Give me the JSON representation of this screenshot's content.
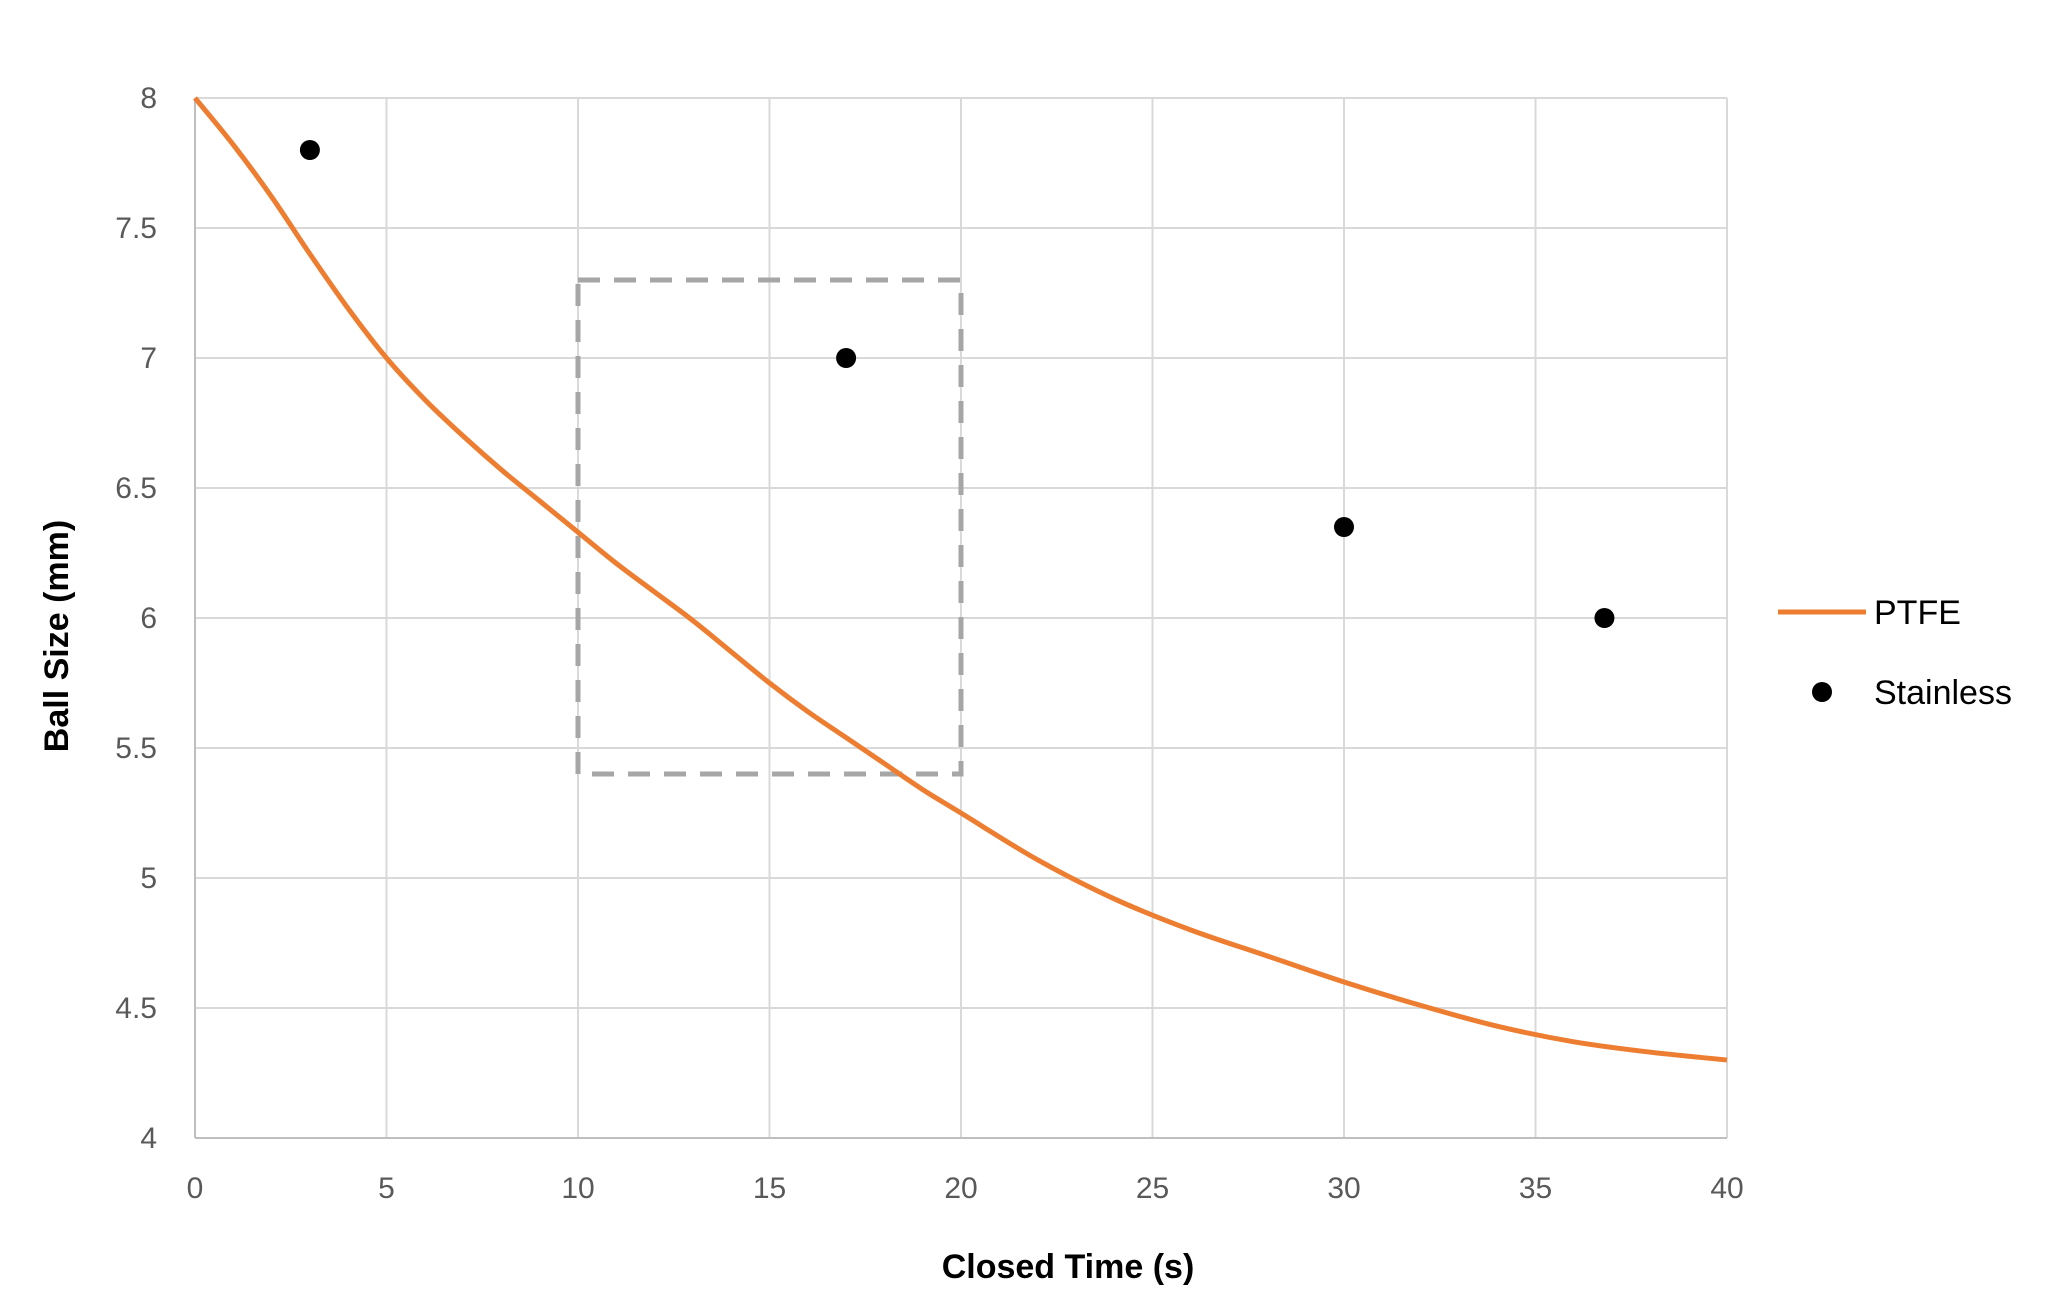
{
  "chart_data": {
    "type": "line",
    "xlabel": "Closed Time (s)",
    "ylabel": "Ball Size (mm)",
    "xlim": [
      0,
      40
    ],
    "ylim": [
      4,
      8
    ],
    "xticks": [
      "0",
      "5",
      "10",
      "15",
      "20",
      "25",
      "30",
      "35",
      "40"
    ],
    "yticks": [
      "4",
      "4.5",
      "5",
      "5.5",
      "6",
      "6.5",
      "7",
      "7.5",
      "8"
    ],
    "grid": true,
    "legend_position": "right",
    "series": [
      {
        "name": "PTFE",
        "kind": "line",
        "color": "#ED7D31",
        "x": [
          0,
          1,
          2,
          3,
          4,
          5,
          6,
          7,
          8,
          9,
          10,
          11,
          12,
          13,
          14,
          15,
          16,
          17,
          18,
          19,
          20,
          22,
          24,
          26,
          28,
          30,
          32,
          34,
          36,
          38,
          40
        ],
        "y": [
          8.0,
          7.82,
          7.62,
          7.4,
          7.19,
          7.0,
          6.84,
          6.7,
          6.57,
          6.45,
          6.33,
          6.21,
          6.1,
          5.99,
          5.87,
          5.75,
          5.64,
          5.54,
          5.44,
          5.34,
          5.25,
          5.07,
          4.92,
          4.8,
          4.7,
          4.6,
          4.51,
          4.43,
          4.37,
          4.33,
          4.3
        ]
      },
      {
        "name": "Stainless",
        "kind": "scatter",
        "color": "#000000",
        "x": [
          3,
          17,
          30,
          36.8
        ],
        "y": [
          7.8,
          7.0,
          6.35,
          6.0
        ]
      }
    ],
    "annotations": [
      {
        "type": "dashed-rectangle",
        "color": "#A6A6A6",
        "x": [
          10,
          20
        ],
        "y": [
          5.4,
          7.3
        ]
      }
    ]
  }
}
